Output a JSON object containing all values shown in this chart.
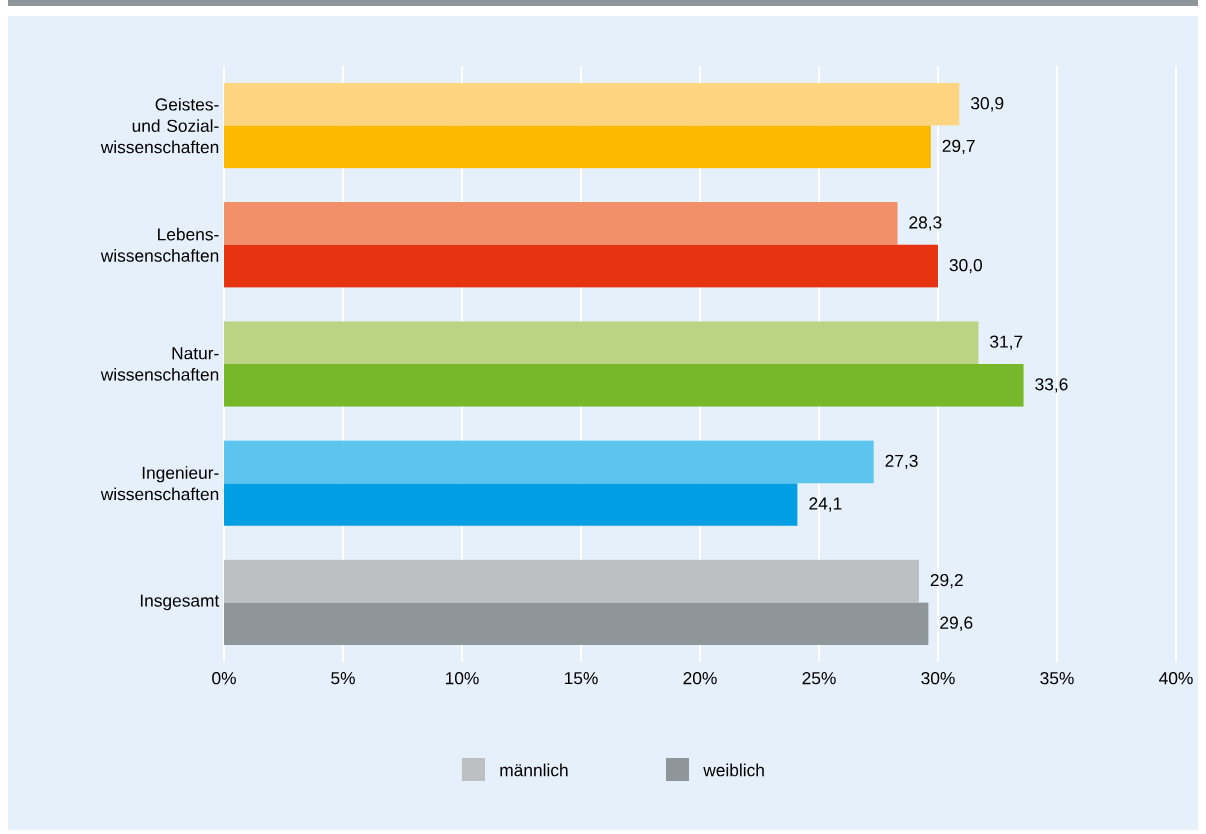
{
  "chart_data": {
    "type": "bar",
    "orientation": "horizontal",
    "categories": [
      "Geistes- und Sozial-wissenschaften",
      "Lebens-wissenschaften",
      "Natur-wissenschaften",
      "Ingenieur-wissenschaften",
      "Insgesamt"
    ],
    "series": [
      {
        "name": "männlich",
        "color": "#bcc0c3",
        "colors": [
          "#fdd480",
          "#f29069",
          "#b8d484",
          "#5bc5f0",
          "#bcc0c3"
        ],
        "values": [
          30.9,
          28.3,
          31.7,
          27.3,
          29.2
        ],
        "value_labels": [
          "30,9",
          "28,3",
          "31,7",
          "27,3",
          "29,2"
        ]
      },
      {
        "name": "weiblich",
        "color": "#8f969a",
        "colors": [
          "#fbba00",
          "#e63312",
          "#76b82a",
          "#009fe3",
          "#8f969a"
        ],
        "values": [
          29.7,
          30.0,
          33.6,
          24.1,
          29.6
        ],
        "value_labels": [
          "29,7",
          "30,0",
          "33,6",
          "24,1",
          "29,6"
        ]
      }
    ],
    "xlim": [
      0,
      40
    ],
    "xticks": [
      {
        "value": 0,
        "label": "0%"
      },
      {
        "value": 5,
        "label": "5%"
      },
      {
        "value": 10,
        "label": "10%"
      },
      {
        "value": 15,
        "label": "15%"
      },
      {
        "value": 20,
        "label": "20%"
      },
      {
        "value": 25,
        "label": "25%"
      },
      {
        "value": 30,
        "label": "30%"
      },
      {
        "value": 35,
        "label": "35%"
      },
      {
        "value": 40,
        "label": "40%"
      }
    ],
    "grid": "x",
    "legend": "bottom"
  }
}
